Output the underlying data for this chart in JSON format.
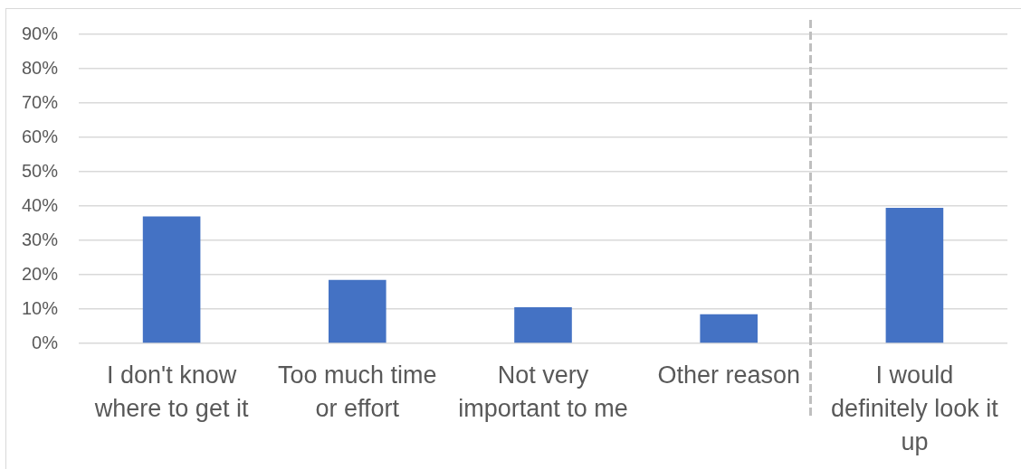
{
  "chart_data": {
    "type": "bar",
    "categories": [
      "I don't know where to get it",
      "Too much time or effort",
      "Not very important to me",
      "Other reason",
      "I would definitely look it up"
    ],
    "values": [
      37,
      18.5,
      10.5,
      8.5,
      39.5
    ],
    "color": "#4472c4",
    "ylim": [
      0,
      90
    ],
    "yticks": [
      {
        "value": 0,
        "label": "0%"
      },
      {
        "value": 10,
        "label": "10%"
      },
      {
        "value": 20,
        "label": "20%"
      },
      {
        "value": 30,
        "label": "30%"
      },
      {
        "value": 40,
        "label": "40%"
      },
      {
        "value": 50,
        "label": "50%"
      },
      {
        "value": 60,
        "label": "60%"
      },
      {
        "value": 70,
        "label": "70%"
      },
      {
        "value": 80,
        "label": "80%"
      },
      {
        "value": 90,
        "label": "90%"
      }
    ],
    "grid": "y"
  }
}
